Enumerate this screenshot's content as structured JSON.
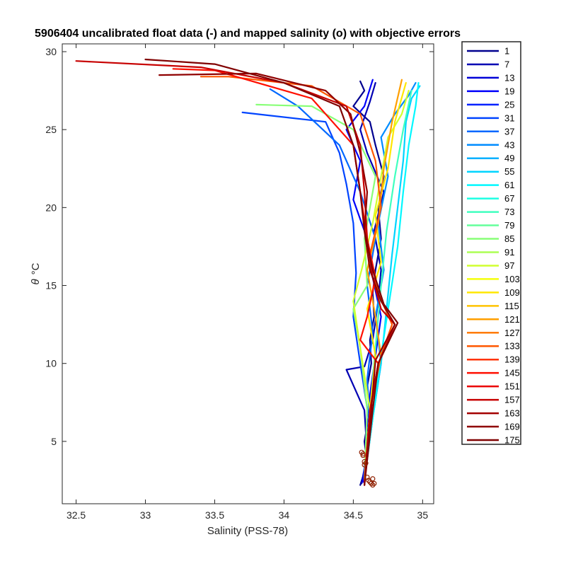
{
  "chart_data": {
    "type": "line",
    "title": "5906404 uncalibrated float data (-) and mapped salinity (o) with objective errors",
    "xlabel": "Salinity (PSS-78)",
    "ylabel_symbol": "θ",
    "ylabel_unit": "°C",
    "xlim": [
      32.4,
      35.08
    ],
    "ylim": [
      1.0,
      30.5
    ],
    "xticks": [
      32.5,
      33,
      33.5,
      34,
      34.5,
      35
    ],
    "xtick_labels": [
      "32.5",
      "33",
      "33.5",
      "34",
      "34.5",
      "35"
    ],
    "yticks": [
      5,
      10,
      15,
      20,
      25,
      30
    ],
    "ytick_labels": [
      "5",
      "10",
      "15",
      "20",
      "25",
      "30"
    ],
    "grid": false,
    "legend_position": "outside-right",
    "colormap": "jet",
    "legend": [
      "1",
      "7",
      "13",
      "19",
      "25",
      "31",
      "37",
      "43",
      "49",
      "55",
      "61",
      "67",
      "73",
      "79",
      "85",
      "91",
      "97",
      "103",
      "109",
      "115",
      "121",
      "127",
      "133",
      "139",
      "145",
      "151",
      "157",
      "163",
      "169",
      "175"
    ],
    "legend_colors": [
      "#00008f",
      "#0000b3",
      "#0000d7",
      "#0000fb",
      "#0020ff",
      "#0044ff",
      "#0068ff",
      "#008cff",
      "#00b0ff",
      "#00d4ff",
      "#00f8ff",
      "#1cffe3",
      "#40ffbf",
      "#64ff9b",
      "#88ff77",
      "#acff53",
      "#d0ff2f",
      "#f4ff0b",
      "#ffe700",
      "#ffc300",
      "#ff9f00",
      "#ff7b00",
      "#ff5700",
      "#ff3300",
      "#ff0f00",
      "#eb0000",
      "#c70000",
      "#a30000",
      "#8f0000",
      "#800000"
    ],
    "series": [
      {
        "name": "1",
        "color": "#00008f",
        "x": [
          34.55,
          34.6,
          34.58,
          34.62,
          34.6,
          34.63,
          34.62,
          34.65,
          34.64,
          34.66,
          34.7,
          34.68,
          34.72,
          34.66,
          34.62,
          34.5,
          34.58,
          34.55
        ],
        "y": [
          2.2,
          3.6,
          5.0,
          7.0,
          8.5,
          10.0,
          11.5,
          13.0,
          14.5,
          16.0,
          18.0,
          20.0,
          22.0,
          24.0,
          25.5,
          26.5,
          27.5,
          28.1
        ]
      },
      {
        "name": "7",
        "color": "#0000b3",
        "x": [
          34.56,
          34.6,
          34.58,
          34.45,
          34.58,
          34.64,
          34.68,
          34.7,
          34.65,
          34.72,
          34.6,
          34.55,
          34.62,
          34.66
        ],
        "y": [
          2.3,
          4.2,
          7.0,
          9.6,
          9.8,
          11.5,
          14.0,
          16.0,
          18.5,
          21.0,
          23.5,
          25.0,
          26.8,
          28.0
        ]
      },
      {
        "name": "19",
        "color": "#0000fb",
        "x": [
          34.57,
          34.6,
          34.62,
          34.66,
          34.7,
          34.64,
          34.6,
          34.5,
          34.55,
          34.45,
          34.58,
          34.64
        ],
        "y": [
          2.4,
          5.0,
          8.0,
          10.5,
          13.0,
          15.5,
          18.0,
          20.5,
          23.0,
          25.0,
          26.5,
          28.2
        ]
      },
      {
        "name": "31",
        "color": "#0044ff",
        "x": [
          34.58,
          34.62,
          34.55,
          34.5,
          34.52,
          34.5,
          34.45,
          34.4,
          34.3,
          33.7
        ],
        "y": [
          2.5,
          6.0,
          10.0,
          13.0,
          15.8,
          19.0,
          21.5,
          23.5,
          25.5,
          26.1
        ]
      },
      {
        "name": "37",
        "color": "#0068ff",
        "x": [
          34.58,
          34.62,
          34.6,
          34.64,
          34.6,
          34.66,
          34.55,
          34.4,
          34.1,
          33.9
        ],
        "y": [
          2.6,
          6.0,
          9.0,
          12.0,
          15.0,
          18.0,
          21.0,
          24.0,
          26.5,
          27.6
        ]
      },
      {
        "name": "43",
        "color": "#008cff",
        "x": [
          34.58,
          34.64,
          34.7,
          34.66,
          34.72,
          34.68,
          34.75,
          34.7,
          34.8,
          34.9,
          34.95
        ],
        "y": [
          2.5,
          6.5,
          10.0,
          13.0,
          16.0,
          19.0,
          22.0,
          24.5,
          26.0,
          27.2,
          28.0
        ]
      },
      {
        "name": "55",
        "color": "#00d4ff",
        "x": [
          34.58,
          34.64,
          34.7,
          34.74,
          34.78,
          34.82,
          34.86,
          34.88,
          34.92,
          34.98
        ],
        "y": [
          2.6,
          6.5,
          10.0,
          13.5,
          17.0,
          20.0,
          23.0,
          25.5,
          27.0,
          27.8
        ]
      },
      {
        "name": "61",
        "color": "#00f8ff",
        "x": [
          34.58,
          34.64,
          34.7,
          34.76,
          34.82,
          34.86,
          34.9,
          34.95,
          34.97
        ],
        "y": [
          2.5,
          6.5,
          10.5,
          14.0,
          17.5,
          21.0,
          24.0,
          26.5,
          28.0
        ]
      },
      {
        "name": "73",
        "color": "#40ffbf",
        "x": [
          34.58,
          34.62,
          34.66,
          34.7,
          34.74,
          34.8,
          34.86,
          34.92
        ],
        "y": [
          2.6,
          7.0,
          11.0,
          15.0,
          18.5,
          22.0,
          25.0,
          27.5
        ]
      },
      {
        "name": "85",
        "color": "#88ff77",
        "x": [
          34.58,
          34.6,
          34.55,
          34.5,
          34.6,
          34.58,
          34.66,
          34.5,
          34.2,
          33.8
        ],
        "y": [
          2.5,
          7.0,
          11.0,
          13.5,
          15.0,
          18.0,
          22.0,
          25.0,
          26.5,
          26.6
        ]
      },
      {
        "name": "97",
        "color": "#d0ff2f",
        "x": [
          34.58,
          34.62,
          34.55,
          34.5,
          34.56,
          34.64,
          34.7,
          34.75,
          34.85,
          34.9
        ],
        "y": [
          2.6,
          7.0,
          11.0,
          14.0,
          16.0,
          19.0,
          22.0,
          24.5,
          26.0,
          27.5
        ]
      },
      {
        "name": "109",
        "color": "#ffe700",
        "x": [
          34.58,
          34.62,
          34.66,
          34.6,
          34.7,
          34.66,
          34.75,
          34.8,
          34.88
        ],
        "y": [
          2.5,
          7.0,
          10.5,
          13.5,
          16.5,
          19.5,
          22.5,
          25.5,
          28.0
        ]
      },
      {
        "name": "121",
        "color": "#ff9f00",
        "x": [
          34.58,
          34.62,
          34.7,
          34.66,
          34.6,
          34.68,
          34.72,
          34.78,
          34.85
        ],
        "y": [
          2.4,
          7.0,
          10.5,
          13.0,
          16.0,
          19.0,
          22.5,
          25.5,
          28.2
        ]
      },
      {
        "name": "133",
        "color": "#ff5700",
        "x": [
          34.58,
          34.62,
          34.7,
          34.78,
          34.68,
          34.62,
          34.7,
          34.66,
          34.55,
          34.2,
          33.6,
          33.4
        ],
        "y": [
          2.3,
          7.0,
          10.5,
          12.5,
          14.5,
          17.0,
          20.0,
          23.0,
          26.0,
          27.8,
          28.4,
          28.4
        ]
      },
      {
        "name": "145",
        "color": "#ff0f00",
        "x": [
          34.58,
          34.62,
          34.68,
          34.55,
          34.6,
          34.66,
          34.6,
          34.55,
          34.5,
          34.2,
          33.5,
          33.2
        ],
        "y": [
          2.3,
          7.0,
          10.0,
          11.5,
          13.0,
          15.5,
          18.0,
          21.0,
          24.0,
          27.0,
          28.8,
          28.9
        ]
      },
      {
        "name": "157",
        "color": "#c70000",
        "x": [
          34.58,
          34.62,
          34.68,
          34.8,
          34.7,
          34.64,
          34.6,
          34.58,
          34.55,
          34.45,
          34.0,
          33.4,
          32.5
        ],
        "y": [
          2.2,
          7.0,
          10.0,
          12.5,
          13.5,
          15.5,
          18.0,
          21.0,
          24.0,
          26.5,
          28.0,
          29.0,
          29.4
        ]
      },
      {
        "name": "169",
        "color": "#8f0000",
        "x": [
          34.58,
          34.63,
          34.66,
          34.8,
          34.7,
          34.62,
          34.58,
          34.6,
          34.55,
          34.48,
          34.3,
          33.8,
          33.1
        ],
        "y": [
          2.2,
          7.0,
          10.2,
          12.5,
          14.0,
          16.0,
          18.5,
          21.0,
          23.5,
          26.0,
          27.5,
          28.6,
          28.5
        ]
      },
      {
        "name": "175",
        "color": "#800000",
        "x": [
          34.58,
          34.64,
          34.68,
          34.82,
          34.72,
          34.64,
          34.58,
          34.55,
          34.5,
          34.4,
          34.0,
          33.5,
          33.0
        ],
        "y": [
          2.2,
          7.0,
          10.0,
          12.6,
          13.8,
          16.0,
          18.5,
          21.0,
          24.0,
          26.5,
          28.0,
          29.2,
          29.5
        ]
      }
    ],
    "mapped_points": {
      "marker": "o",
      "x": [
        34.56,
        34.57,
        34.57,
        34.58,
        34.58,
        34.59,
        34.6,
        34.61,
        34.62,
        34.63,
        34.64,
        34.64,
        34.65
      ],
      "y": [
        4.3,
        4.1,
        4.2,
        3.7,
        3.5,
        3.6,
        2.7,
        2.5,
        2.4,
        2.3,
        2.2,
        2.6,
        2.3
      ]
    }
  }
}
